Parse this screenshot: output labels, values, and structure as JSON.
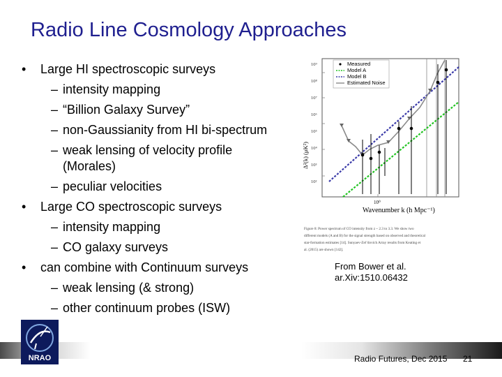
{
  "slide": {
    "title": "Radio Line Cosmology Approaches",
    "bullets": [
      {
        "level": 1,
        "marker": "•",
        "text": "Large HI spectroscopic surveys"
      },
      {
        "level": 2,
        "marker": "–",
        "text": "intensity mapping"
      },
      {
        "level": 2,
        "marker": "–",
        "text": "“Billion Galaxy Survey”"
      },
      {
        "level": 2,
        "marker": "–",
        "text": "non-Gaussianity from HI bi-spectrum"
      },
      {
        "level": 2,
        "marker": "–",
        "text": "weak lensing of velocity profile"
      },
      {
        "level": 2,
        "marker": "",
        "text": "(Morales)"
      },
      {
        "level": 2,
        "marker": "–",
        "text": "peculiar velocities"
      },
      {
        "level": 1,
        "marker": "•",
        "text": "Large CO spectroscopic surveys"
      },
      {
        "level": 2,
        "marker": "–",
        "text": "intensity mapping"
      },
      {
        "level": 2,
        "marker": "–",
        "text": "CO galaxy surveys"
      },
      {
        "level": 1,
        "marker": "•",
        "text": "can combine with Continuum surveys"
      },
      {
        "level": 2,
        "marker": "–",
        "text": "weak lensing (& strong)"
      },
      {
        "level": 2,
        "marker": "–",
        "text": "other continuum probes (ISW)"
      }
    ],
    "credit_line1": "From Bower et al.",
    "credit_line2": "ar.Xiv:1510.06432",
    "footer_text": "Radio Futures, Dec 2015",
    "page_number": "21",
    "logo_text": "NRAO"
  },
  "figure": {
    "legend": [
      "Measured",
      "Model A",
      "Model B",
      "Estimated Noise"
    ],
    "ylabel": "Δ²(k) (μK²)",
    "xlabel": "Wavenumber k (h Mpc⁻¹)",
    "xtick_major": "10⁰",
    "ytick_labels": [
      "10⁹",
      "10⁸",
      "10⁷",
      "10⁶",
      "10⁵",
      "10⁴",
      "10³",
      "10²"
    ],
    "colors": {
      "model_a": "#22c322",
      "model_b": "#3a3aa8",
      "noise": "#8a8a8a",
      "measured": "#000000"
    },
    "caption_lines": [
      "Figure 8: Power spectrum of CO intensity from z ~ 2.3 to 3.3. We show two",
      "different models (A and B) for the signal strength based on observed and theoretical",
      "star-formation estimates [14]. Sunyaev-Zel’dovich Array results from Keating et",
      "al. (2015) are shown [142]."
    ]
  },
  "title_color": "#1f1f8f"
}
